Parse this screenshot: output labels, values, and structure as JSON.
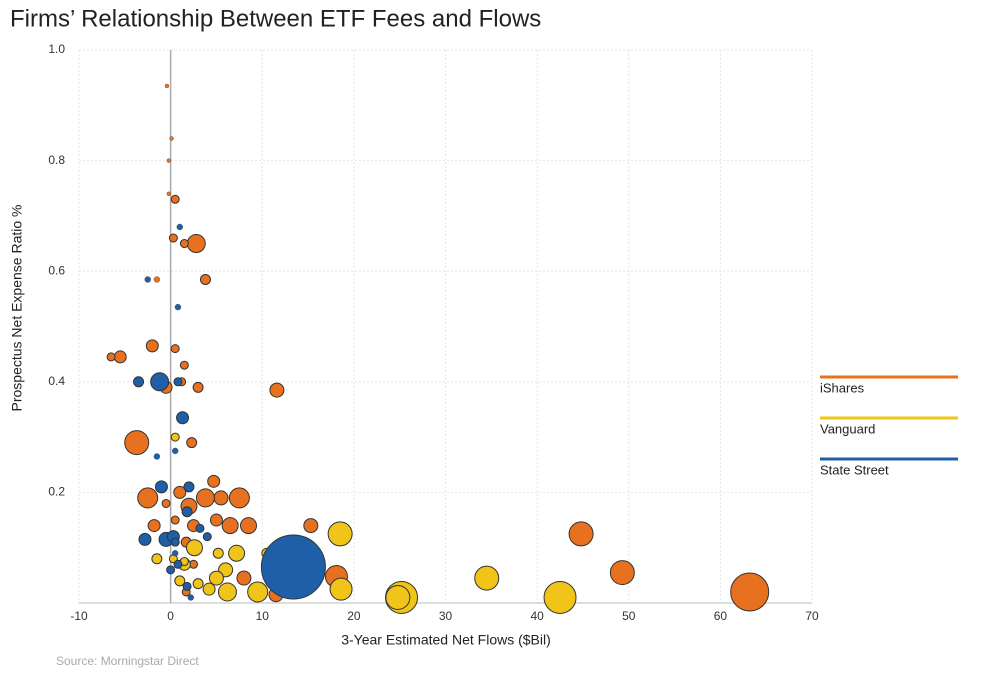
{
  "chart_data": {
    "type": "scatter",
    "title": "Firms’ Relationship Between ETF Fees and Flows",
    "x_label": "3-Year Estimated Net Flows ($Bil)",
    "y_label": "Prospectus Net Expense Ratio %",
    "source": "Source: Morningstar Direct",
    "xlim": [
      -10,
      70
    ],
    "xticks": [
      -10,
      0,
      10,
      20,
      30,
      40,
      50,
      60,
      70
    ],
    "ylim": [
      0,
      1
    ],
    "yticks": [
      0.2,
      0.4,
      0.6,
      0.8,
      {
        "value": 1,
        "label": "1.0"
      }
    ],
    "grid": true,
    "legend": "right",
    "series": [
      {
        "name": "iShares",
        "color": "#e8711f",
        "x": [
          63.2,
          49.3,
          44.8,
          18.1,
          15.3,
          11.5,
          11.6,
          8.5,
          7.5,
          6.5,
          5.5,
          4.7,
          3.8,
          3,
          2.8,
          3.8,
          0.5,
          -0.4,
          0.1,
          -0.2,
          -0.2,
          0.3,
          1.5,
          -1.5,
          -2,
          -5.5,
          -6.5,
          -3.7,
          -2.5,
          -1.8,
          1,
          2,
          2.5,
          1.7,
          2.5,
          2.3,
          -0.5,
          0.5,
          1.5,
          1.2,
          8,
          1.7,
          0.5,
          -0.5,
          5
        ],
        "values": [
          0.02,
          0.055,
          0.125,
          0.048,
          0.14,
          0.015,
          0.385,
          0.14,
          0.19,
          0.14,
          0.19,
          0.22,
          0.19,
          0.39,
          0.65,
          0.585,
          0.73,
          0.935,
          0.84,
          0.8,
          0.74,
          0.66,
          0.65,
          0.585,
          0.465,
          0.445,
          0.445,
          0.29,
          0.19,
          0.14,
          0.2,
          0.175,
          0.14,
          0.11,
          0.07,
          0.29,
          0.39,
          0.46,
          0.43,
          0.4,
          0.045,
          0.02,
          0.15,
          0.18,
          0.15
        ],
        "sizes": [
          19,
          12,
          12,
          11,
          7,
          7,
          7,
          8,
          10,
          8,
          7,
          6,
          9,
          5,
          9,
          5,
          4,
          2,
          2,
          2,
          2,
          4,
          4,
          3,
          6,
          6,
          4,
          12,
          10,
          6,
          6,
          8,
          6,
          5,
          4,
          5,
          6,
          4,
          4,
          4,
          7,
          4,
          4,
          4,
          6
        ]
      },
      {
        "name": "Vanguard",
        "color": "#f0c419",
        "x": [
          42.5,
          34.5,
          25.2,
          24.8,
          18.5,
          18.6,
          9.5,
          7.2,
          6.2,
          6,
          5,
          4.2,
          2.6,
          1.5,
          10.5,
          5.2,
          0.5,
          1,
          3,
          1.5,
          0.3,
          -1.5
        ],
        "values": [
          0.01,
          0.045,
          0.01,
          0.01,
          0.125,
          0.025,
          0.02,
          0.09,
          0.02,
          0.06,
          0.045,
          0.025,
          0.1,
          0.07,
          0.09,
          0.09,
          0.3,
          0.04,
          0.035,
          0.075,
          0.08,
          0.08
        ],
        "sizes": [
          16,
          12,
          16,
          12,
          12,
          11,
          10,
          8,
          9,
          7,
          7,
          6,
          8,
          6,
          5,
          5,
          4,
          5,
          5,
          4,
          4,
          5
        ]
      },
      {
        "name": "State Street",
        "color": "#1f5fa8",
        "x": [
          13.4,
          -1.2,
          -3.5,
          1.3,
          0.8,
          -2.8,
          -0.5,
          0.3,
          1.8,
          2,
          -1,
          -2.5,
          0.8,
          1,
          0.5,
          -1.5,
          3.2,
          4,
          1.8,
          2.2,
          0,
          0.5,
          0.8,
          0.5
        ],
        "values": [
          0.065,
          0.4,
          0.4,
          0.335,
          0.4,
          0.115,
          0.115,
          0.12,
          0.165,
          0.21,
          0.21,
          0.585,
          0.535,
          0.68,
          0.275,
          0.265,
          0.135,
          0.12,
          0.03,
          0.01,
          0.06,
          0.11,
          0.07,
          0.09
        ],
        "sizes": [
          32,
          9,
          5,
          6,
          4,
          6,
          7,
          6,
          5,
          5,
          6,
          3,
          3,
          3,
          3,
          3,
          4,
          4,
          4,
          3,
          4,
          4,
          4,
          3
        ]
      }
    ]
  }
}
